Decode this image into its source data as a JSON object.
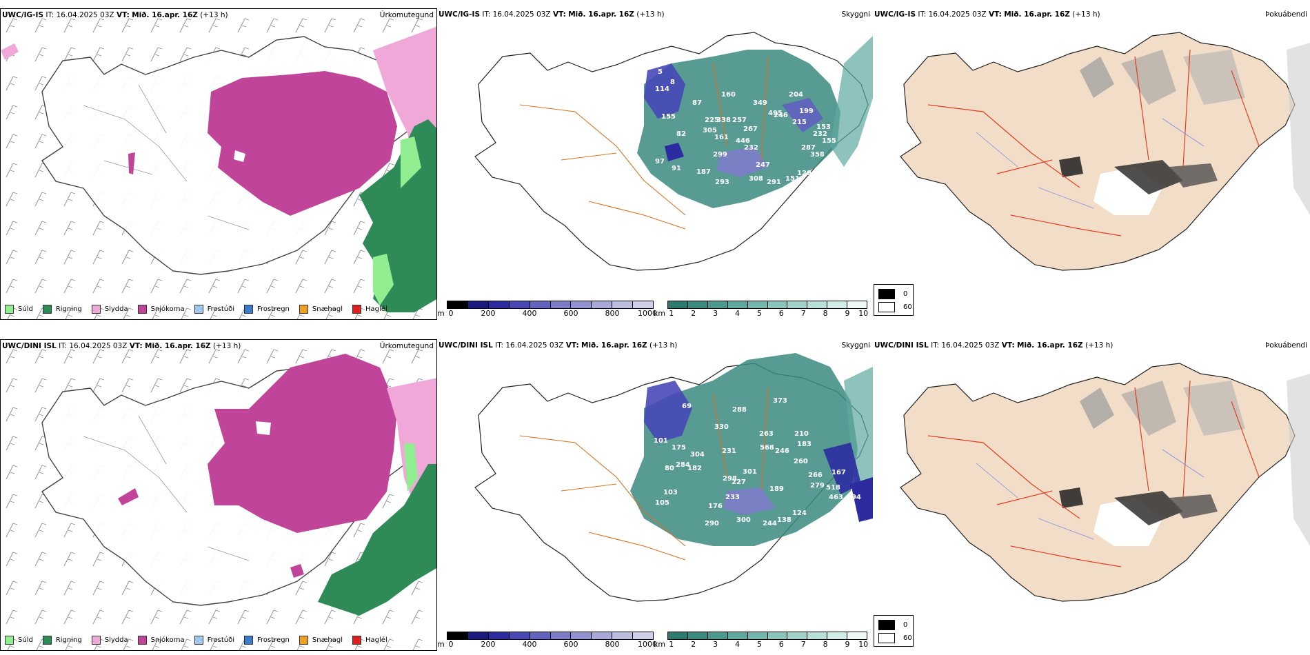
{
  "rows": [
    {
      "model": "UWC/IG-IS",
      "it_label": "IT:",
      "it_value": "16.04.2025 03Z",
      "vt_label": "VT:",
      "vt_value": "Mið. 16.apr. 16Z",
      "lead": "(+13 h)",
      "labels": [
        "5",
        "8",
        "114",
        "155",
        "87",
        "225",
        "338",
        "82",
        "305",
        "161",
        "160",
        "349",
        "257",
        "267",
        "446",
        "495",
        "246",
        "204",
        "199",
        "215",
        "232",
        "287",
        "153",
        "155",
        "358",
        "120",
        "151",
        "291",
        "308",
        "293",
        "187",
        "247",
        "299",
        "232",
        "91",
        "97"
      ]
    },
    {
      "model": "UWC/DINI ISL",
      "it_label": "IT:",
      "it_value": "16.04.2025 03Z",
      "vt_label": "VT:",
      "vt_value": "Mið. 16.apr. 16Z",
      "lead": "(+13 h)",
      "labels": [
        "69",
        "101",
        "175",
        "304",
        "80",
        "284",
        "182",
        "330",
        "231",
        "288",
        "373",
        "263",
        "568",
        "246",
        "210",
        "183",
        "260",
        "266",
        "279",
        "518",
        "167",
        "463",
        "194",
        "301",
        "227",
        "189",
        "124",
        "298",
        "233",
        "176",
        "290",
        "300",
        "244",
        "138",
        "105",
        "103"
      ]
    }
  ],
  "panel_titles": {
    "precip_type": "Úrkomutegund",
    "cloud": "Skyggni",
    "fog": "Þokuábendi"
  },
  "precip_legend": [
    {
      "label": "Súld",
      "color": "#90ee90"
    },
    {
      "label": "Rigning",
      "color": "#2e8b57"
    },
    {
      "label": "Slydda",
      "color": "#f0a8d8"
    },
    {
      "label": "Snjókoma",
      "color": "#c0449a"
    },
    {
      "label": "Frostúði",
      "color": "#9ec8f0"
    },
    {
      "label": "Frostregn",
      "color": "#3a7cc8"
    },
    {
      "label": "Snæhagl",
      "color": "#f0a020"
    },
    {
      "label": "Haglél",
      "color": "#e02020"
    }
  ],
  "cloud_base_scale": {
    "unit": "m",
    "ticks": [
      "0",
      "200",
      "400",
      "600",
      "800",
      "1000"
    ],
    "colors": [
      "#000000",
      "#1a1a80",
      "#2c2ca0",
      "#4848b8",
      "#6262c0",
      "#7c7cc8",
      "#9292d0",
      "#a8a8d8",
      "#bcbce0",
      "#d0d0ea"
    ]
  },
  "visibility_scale": {
    "unit": "km",
    "ticks": [
      "1",
      "2",
      "3",
      "4",
      "5",
      "6",
      "7",
      "8",
      "9",
      "10"
    ],
    "colors": [
      "#2a7a70",
      "#3a8a80",
      "#4c9a90",
      "#5ea8a0",
      "#72b6ae",
      "#88c4bc",
      "#a0d2ca",
      "#b8e0d8",
      "#d0ece6",
      "#eef8f6"
    ]
  },
  "fog_legend": [
    {
      "value": "0",
      "color": "#000000"
    },
    {
      "value": "60",
      "color": "#ffffff"
    }
  ]
}
